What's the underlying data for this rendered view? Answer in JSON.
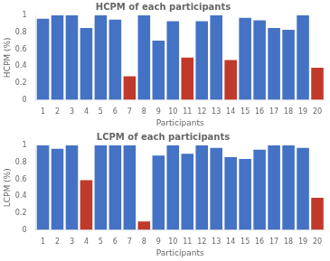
{
  "chart_data": [
    {
      "type": "bar",
      "title": "HCPM of each participants",
      "x_label": "Participants",
      "y_label": "HCPM (%)",
      "categories": [
        "1",
        "2",
        "3",
        "4",
        "5",
        "6",
        "7",
        "8",
        "9",
        "10",
        "11",
        "12",
        "13",
        "14",
        "15",
        "16",
        "17",
        "18",
        "19",
        "20"
      ],
      "values": [
        0.96,
        1.0,
        1.0,
        0.85,
        1.0,
        0.95,
        0.28,
        1.0,
        0.7,
        0.93,
        0.5,
        0.93,
        1.0,
        0.47,
        0.97,
        0.94,
        0.85,
        0.83,
        1.0,
        0.38
      ],
      "colors": [
        "#4472c4",
        "#4472c4",
        "#4472c4",
        "#4472c4",
        "#4472c4",
        "#4472c4",
        "#c0392b",
        "#4472c4",
        "#4472c4",
        "#4472c4",
        "#c0392b",
        "#4472c4",
        "#4472c4",
        "#c0392b",
        "#4472c4",
        "#4472c4",
        "#4472c4",
        "#4472c4",
        "#4472c4",
        "#c0392b"
      ],
      "ylim": [
        0,
        1
      ],
      "yticks": [
        0,
        0.2,
        0.4,
        0.6,
        0.8,
        1
      ],
      "grid": false
    },
    {
      "type": "bar",
      "title": "LCPM of each participants",
      "x_label": "Participants",
      "y_label": "LCPM (%)",
      "categories": [
        "1",
        "2",
        "3",
        "4",
        "5",
        "6",
        "7",
        "8",
        "9",
        "10",
        "11",
        "12",
        "13",
        "14",
        "15",
        "16",
        "17",
        "18",
        "19",
        "20"
      ],
      "values": [
        1.0,
        0.96,
        1.0,
        0.59,
        1.0,
        1.0,
        1.0,
        0.1,
        0.88,
        1.0,
        0.9,
        1.0,
        0.97,
        0.86,
        0.84,
        0.95,
        1.0,
        1.0,
        0.97,
        0.38
      ],
      "colors": [
        "#4472c4",
        "#4472c4",
        "#4472c4",
        "#c0392b",
        "#4472c4",
        "#4472c4",
        "#4472c4",
        "#c0392b",
        "#4472c4",
        "#4472c4",
        "#4472c4",
        "#4472c4",
        "#4472c4",
        "#4472c4",
        "#4472c4",
        "#4472c4",
        "#4472c4",
        "#4472c4",
        "#4472c4",
        "#c0392b"
      ],
      "ylim": [
        0,
        1
      ],
      "yticks": [
        0,
        0.2,
        0.4,
        0.6,
        0.8,
        1
      ],
      "grid": false
    }
  ]
}
